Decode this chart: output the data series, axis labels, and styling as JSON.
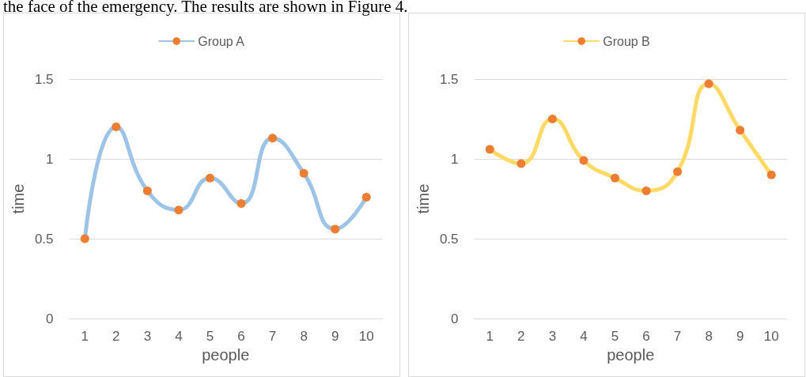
{
  "chart_data": [
    {
      "type": "line",
      "xlabel": "people",
      "ylabel": "time",
      "annotations": [
        "the face of the emergency. The results are shown in Figure 4."
      ],
      "categories": [
        "1",
        "2",
        "3",
        "4",
        "5",
        "6",
        "7",
        "8",
        "9",
        "10"
      ],
      "series": [
        {
          "name": "Group A",
          "color": "#9dc3e6",
          "colors": [
            "#ed7d31",
            "#ed7d31",
            "#ed7d31",
            "#ed7d31",
            "#ed7d31",
            "#ed7d31",
            "#ed7d31",
            "#ed7d31",
            "#ed7d31",
            "#ed7d31"
          ],
          "values": [
            0.5,
            1.2,
            0.8,
            0.68,
            0.88,
            0.72,
            1.13,
            0.91,
            0.56,
            0.76
          ]
        }
      ],
      "ylim": [
        0,
        1.5
      ],
      "yticks": [
        0,
        0.5,
        1,
        1.5
      ],
      "grid": "y",
      "legend": "top",
      "marker": "circle",
      "line_style": "solid"
    },
    {
      "type": "line",
      "xlabel": "people",
      "ylabel": "time",
      "categories": [
        "1",
        "2",
        "3",
        "4",
        "5",
        "6",
        "7",
        "8",
        "9",
        "10"
      ],
      "series": [
        {
          "name": "Group B",
          "color": "#ffd966",
          "colors": [
            "#ed7d31",
            "#ed7d31",
            "#ed7d31",
            "#ed7d31",
            "#ed7d31",
            "#ed7d31",
            "#ed7d31",
            "#ed7d31",
            "#ed7d31",
            "#ed7d31"
          ],
          "values": [
            1.06,
            0.97,
            1.25,
            0.99,
            0.88,
            0.8,
            0.92,
            1.47,
            1.18,
            0.9
          ]
        }
      ],
      "ylim": [
        0,
        1.5
      ],
      "yticks": [
        0,
        0.5,
        1,
        1.5
      ],
      "grid": "y",
      "legend": "top",
      "marker": "circle",
      "line_style": "solid"
    }
  ]
}
